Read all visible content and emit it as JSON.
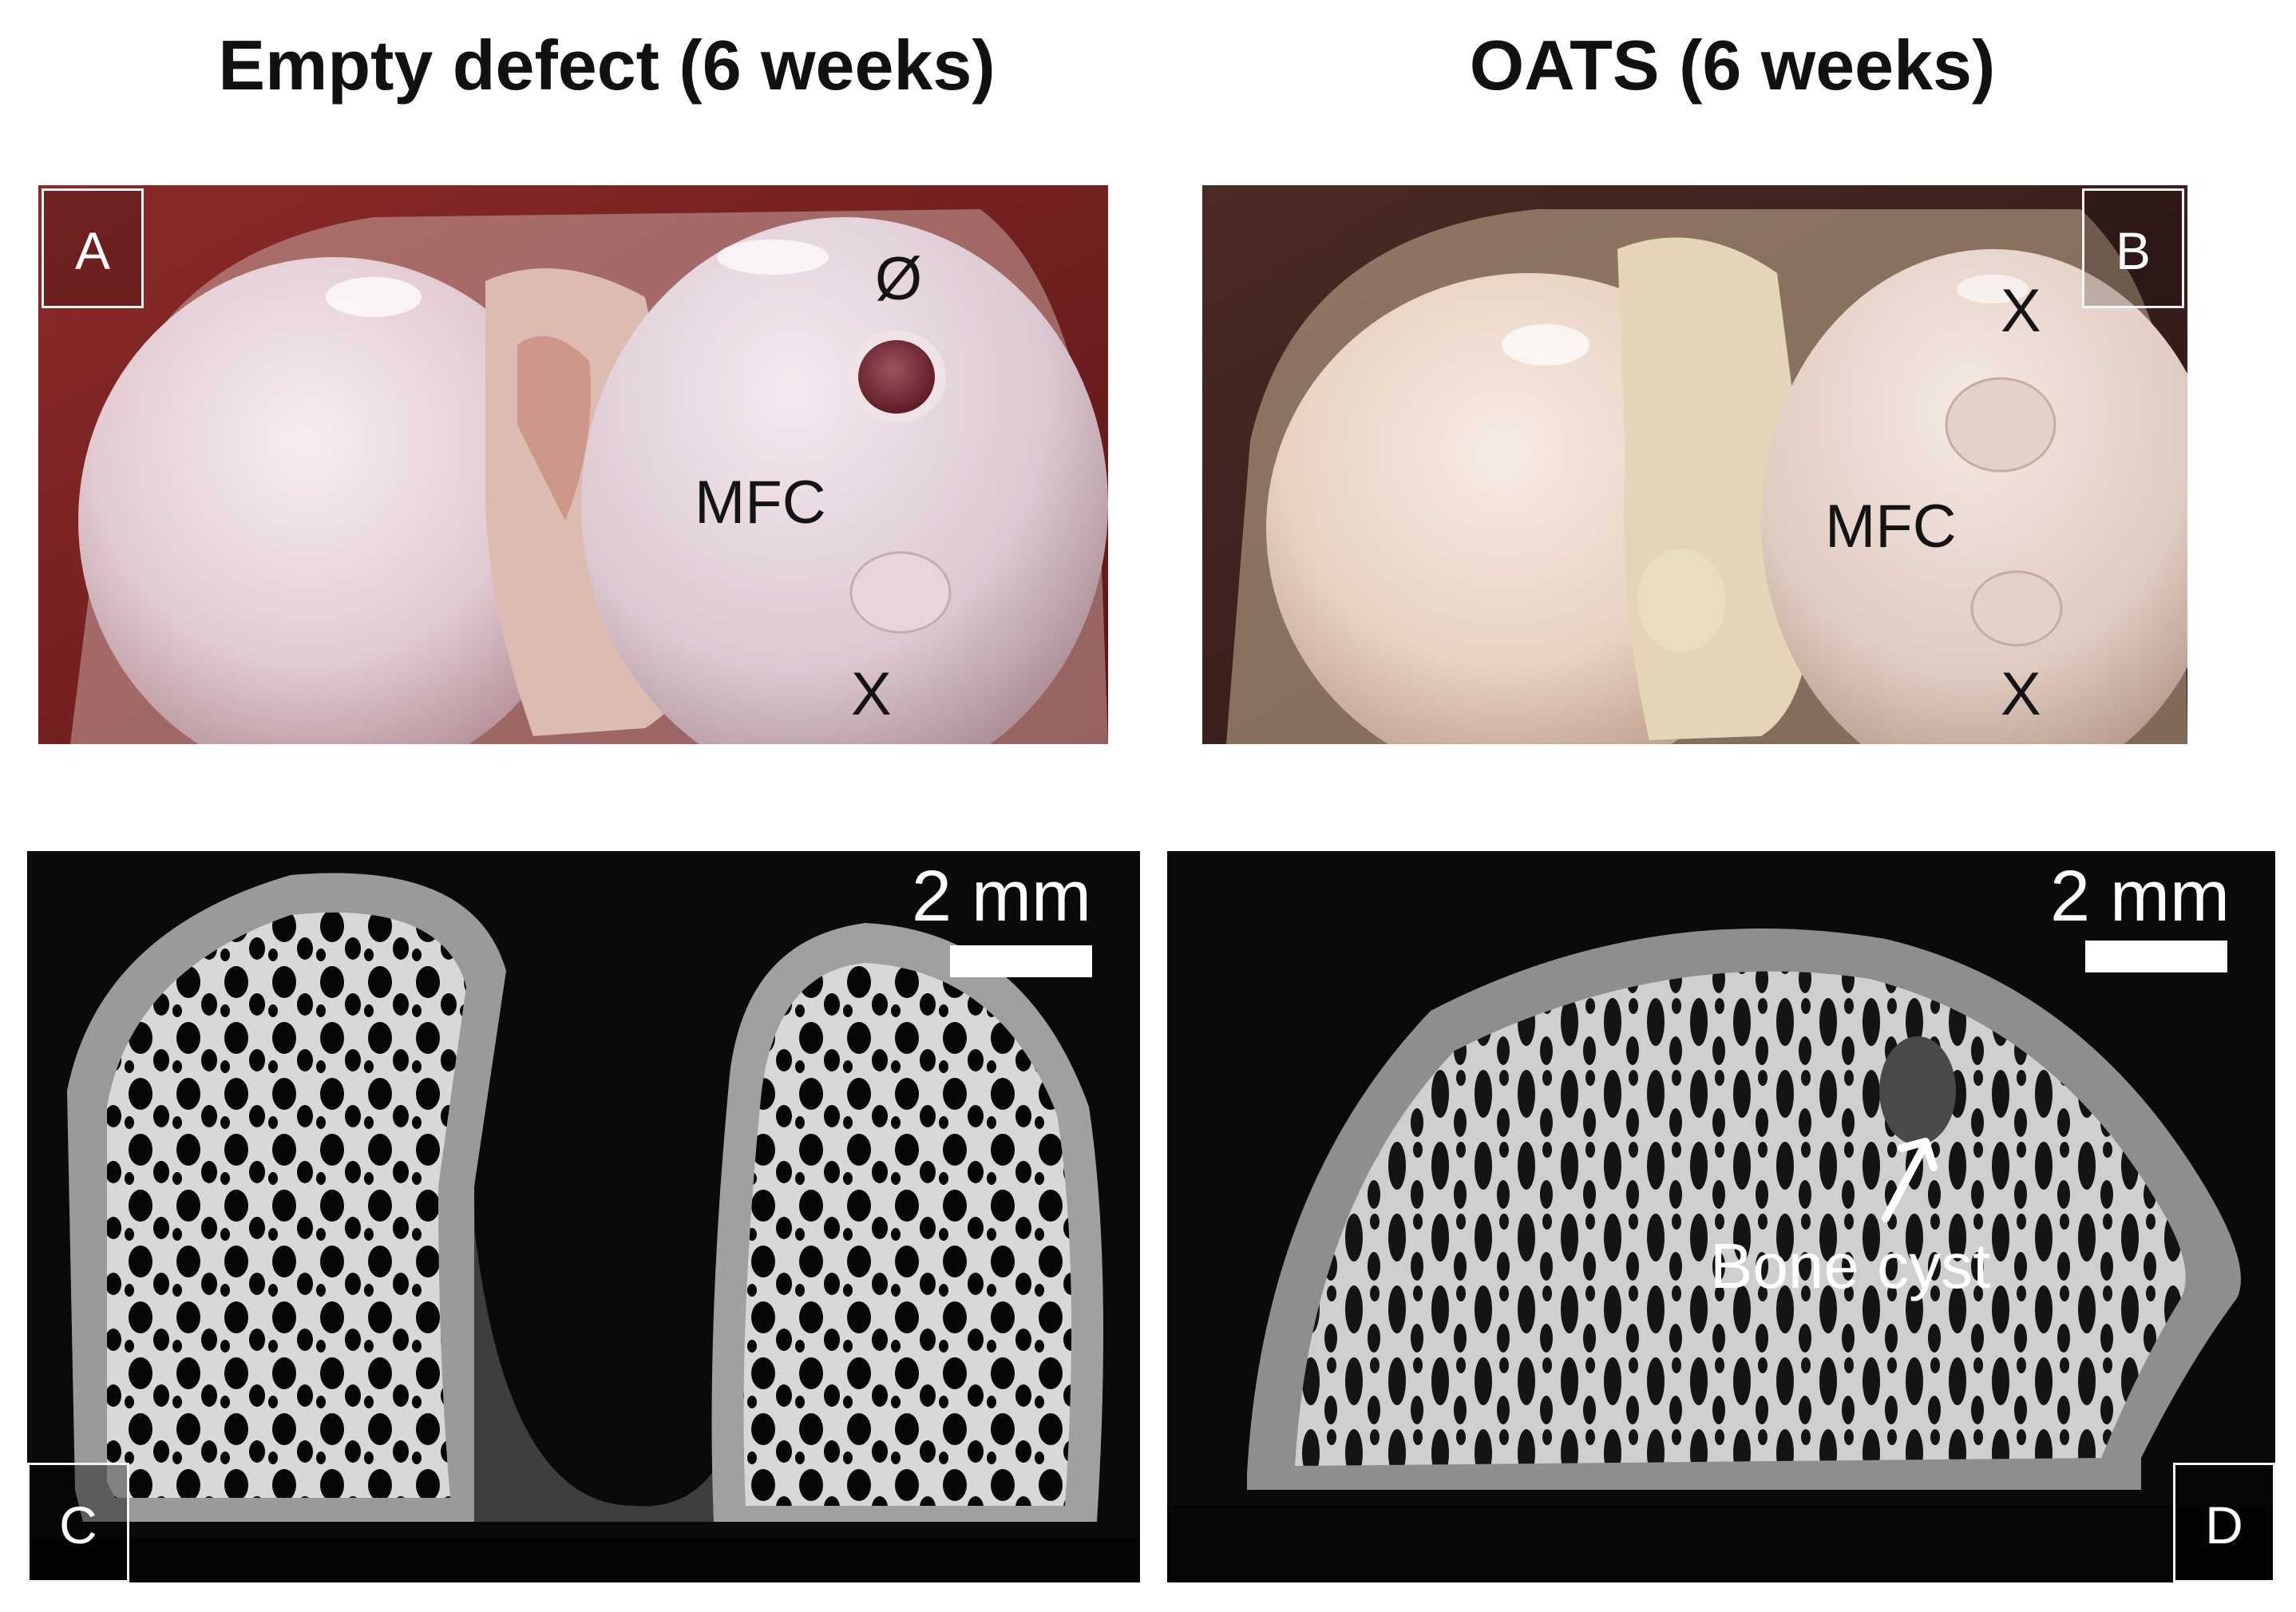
{
  "titles": {
    "left": "Empty defect (6 weeks)",
    "right": "OATS (6 weeks)"
  },
  "panels": {
    "a": {
      "letter": "A",
      "marks": {
        "defect_symbol": "Ø",
        "mfc": "MFC",
        "x_bottom": "X"
      }
    },
    "b": {
      "letter": "B",
      "marks": {
        "x_top": "X",
        "mfc": "MFC",
        "x_bottom": "X"
      }
    },
    "c": {
      "letter": "C",
      "scale_label": "2 mm"
    },
    "d": {
      "letter": "D",
      "scale_label": "2 mm",
      "cyst_label": "Bone cyst"
    }
  },
  "colors": {
    "photo_bg_left": "#7a2020",
    "photo_bg_right": "#3b1d1b",
    "cartilage_left": "#e9d8dc",
    "cartilage_right": "#ecd9c8",
    "micro_ct_bg": "#0a0a0a",
    "bone": "#e0e0e0"
  }
}
